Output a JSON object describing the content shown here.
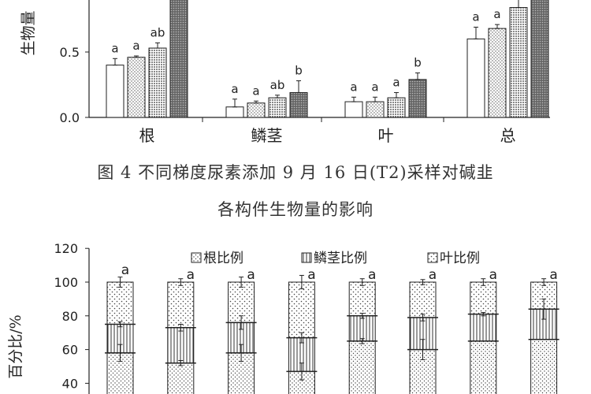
{
  "chart_data": [
    {
      "type": "bar",
      "ylabel": "生物量",
      "ylim": [
        0,
        1.0
      ],
      "yticks": [
        "0.0",
        "0.5"
      ],
      "categories": [
        "根",
        "鳞茎",
        "叶",
        "总"
      ],
      "series": [
        {
          "pattern": "white",
          "values": [
            0.4,
            0.08,
            0.12,
            0.6
          ],
          "err": [
            0.05,
            0.06,
            0.035,
            0.09
          ],
          "sig": [
            "a",
            "a",
            "a",
            "a"
          ]
        },
        {
          "pattern": "dots",
          "values": [
            0.46,
            0.11,
            0.12,
            0.68
          ],
          "err": [
            0.01,
            0.015,
            0.035,
            0.03
          ],
          "sig": [
            "a",
            "a",
            "a",
            "a"
          ]
        },
        {
          "pattern": "dense",
          "values": [
            0.53,
            0.15,
            0.15,
            0.84
          ],
          "err": [
            0.04,
            0.02,
            0.04,
            0.08
          ],
          "sig": [
            "ab",
            "ab",
            "a",
            ""
          ]
        },
        {
          "pattern": "dark",
          "values": [
            0.9,
            0.19,
            0.29,
            0.95
          ],
          "err": [
            0.0,
            0.09,
            0.05,
            0.0
          ],
          "sig": [
            "",
            "b",
            "b",
            ""
          ]
        }
      ]
    },
    {
      "type": "bar",
      "stacked": true,
      "ylabel": "百分比/%",
      "ylim": [
        30,
        120
      ],
      "yticks": [
        40,
        60,
        80,
        100,
        120
      ],
      "legend": [
        "根比例",
        "鳞茎比例",
        "叶比例"
      ],
      "n_bars": 8,
      "tops": [
        "a",
        "a",
        "a",
        "a",
        "a",
        "a",
        "a",
        "a"
      ],
      "root": [
        58,
        52,
        58,
        47,
        65,
        60,
        65,
        66
      ],
      "bulb": [
        75,
        73,
        76,
        67,
        80,
        79,
        81,
        84
      ],
      "errs": [
        {
          "root": 5,
          "bulb": 1.5,
          "top": 3
        },
        {
          "root": 1.5,
          "bulb": 2,
          "top": 2
        },
        {
          "root": 5,
          "bulb": 4,
          "top": 3
        },
        {
          "root": 5,
          "bulb": 3,
          "top": 4
        },
        {
          "root": 1.5,
          "bulb": 1.5,
          "top": 2
        },
        {
          "root": 6,
          "bulb": 2,
          "top": 1.5
        },
        {
          "root": 0,
          "bulb": 1,
          "top": 2
        },
        {
          "root": 0,
          "bulb": 6,
          "top": 2
        }
      ]
    }
  ],
  "caption": {
    "line1": "图 4   不同梯度尿素添加 9 月 16 日(T2)采样对碱韭",
    "line2": "各构件生物量的影响"
  }
}
